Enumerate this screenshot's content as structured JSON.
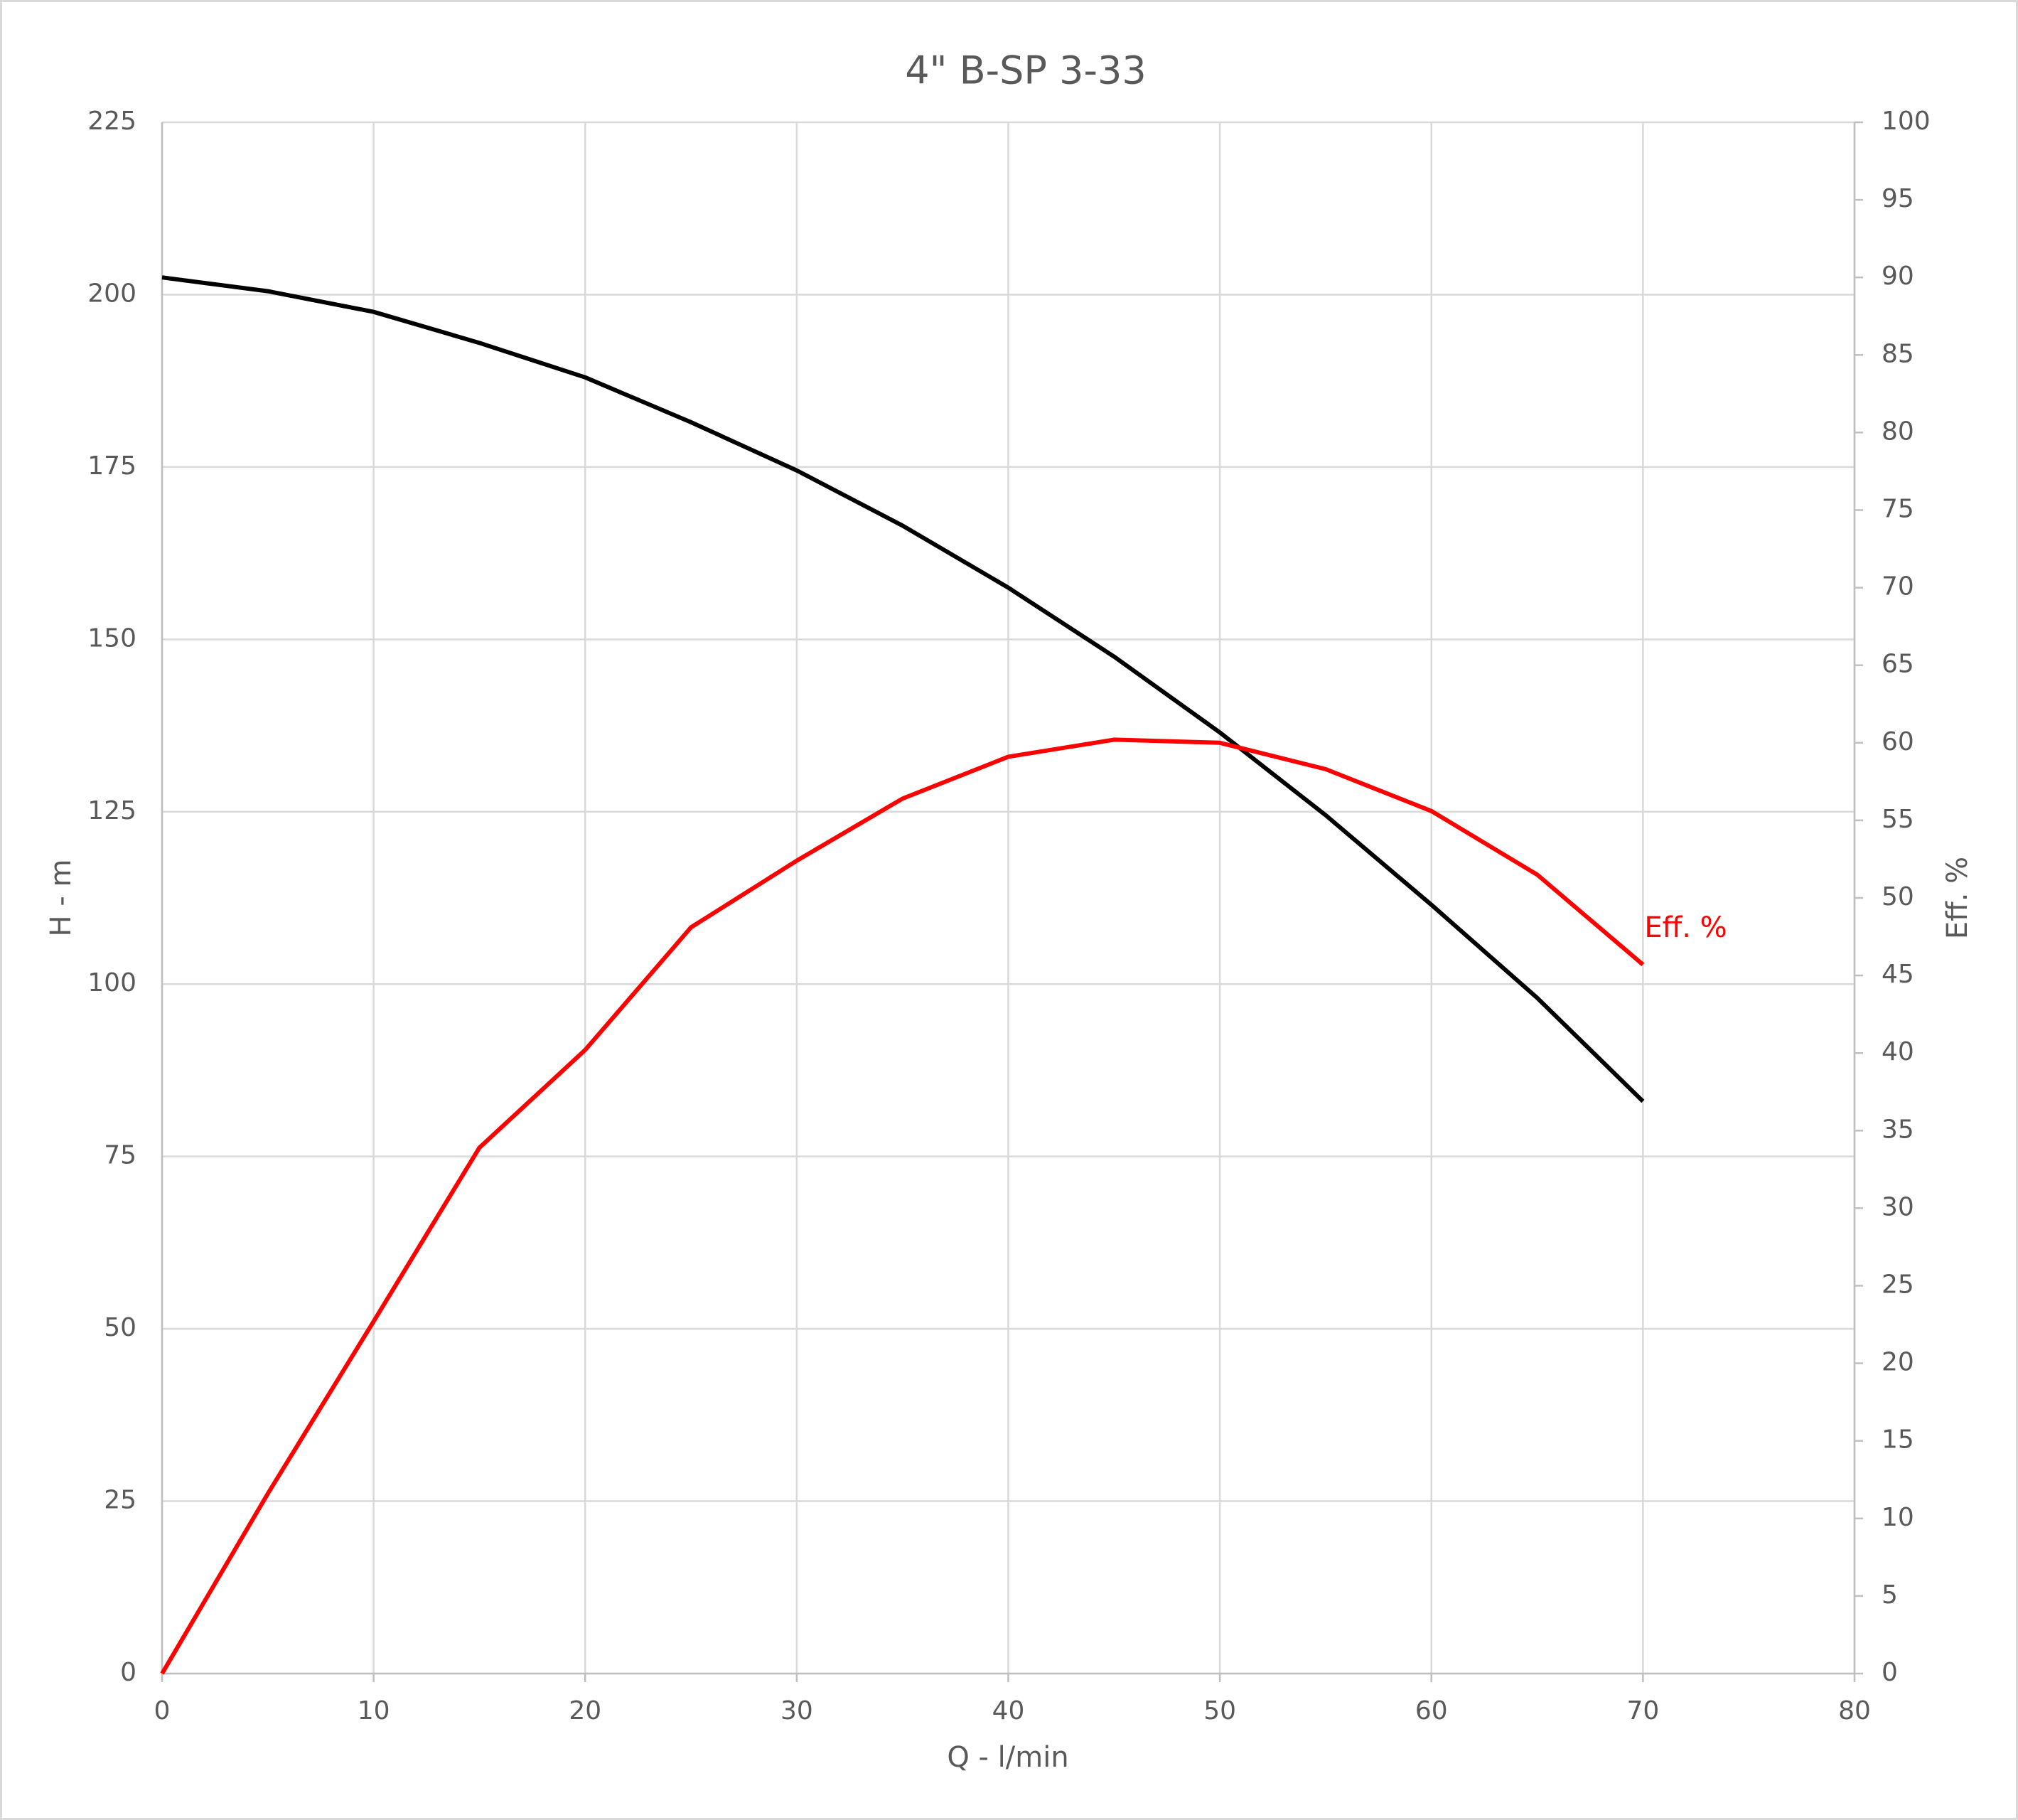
{
  "chart_data": {
    "type": "line",
    "title": "4\" B-SP 3-33",
    "xlabel": "Q - l/min",
    "ylabel": "H - m",
    "y2label": "Eff. %",
    "x": [
      0,
      5,
      10,
      15,
      20,
      25,
      30,
      35,
      40,
      45,
      50,
      55,
      60,
      65,
      70
    ],
    "series": [
      {
        "color": "#000000",
        "values": [
          202.5,
          200.5,
          197.5,
          193,
          188,
          181.5,
          174.5,
          166.5,
          157.5,
          147.5,
          136.5,
          124.5,
          111.5,
          98,
          83
        ]
      },
      {
        "name": "Eff. %",
        "color": "#ff0000",
        "axis": "y2",
        "values": [
          0,
          11.6,
          22.7,
          33.9,
          40.2,
          48.1,
          52.4,
          56.4,
          59.1,
          60.2,
          60,
          58.3,
          55.6,
          51.5,
          45.7
        ]
      }
    ],
    "xlim": [
      0,
      80
    ],
    "xticks": [
      0,
      10,
      20,
      30,
      40,
      50,
      60,
      70,
      80
    ],
    "ylim": [
      0,
      225
    ],
    "yticks": [
      0,
      25,
      50,
      75,
      100,
      125,
      150,
      175,
      200,
      225
    ],
    "y2lim": [
      0,
      100
    ],
    "y2ticks": [
      0,
      5,
      10,
      15,
      20,
      25,
      30,
      35,
      40,
      45,
      50,
      55,
      60,
      65,
      70,
      75,
      80,
      85,
      90,
      95,
      100
    ],
    "grid": true
  }
}
